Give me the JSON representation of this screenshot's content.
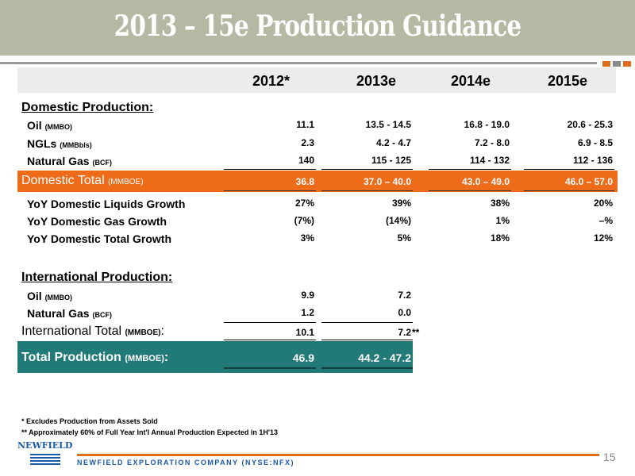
{
  "title": "2013 – 15e Production Guidance",
  "headers": [
    "2012*",
    "2013e",
    "2014e",
    "2015e"
  ],
  "domestic": {
    "section_label": "Domestic Production:",
    "rows": [
      {
        "label": "Oil",
        "unit": "(MMBO)",
        "values": [
          "11.1",
          "13.5 - 14.5",
          "16.8 - 19.0",
          "20.6 - 25.3"
        ]
      },
      {
        "label": "NGLs",
        "unit": "(MMBbls)",
        "values": [
          "2.3",
          "4.2 - 4.7",
          "7.2 - 8.0",
          "6.9 - 8.5"
        ]
      },
      {
        "label": "Natural Gas",
        "unit": "(BCF)",
        "values": [
          "140",
          "115 - 125",
          "114 - 132",
          "112 - 136"
        ]
      }
    ],
    "total": {
      "label": "Domestic Total",
      "unit": "(MMBOE)",
      "values": [
        "36.8",
        "37.0 – 40.0",
        "43.0 – 49.0",
        "46.0 – 57.0"
      ]
    },
    "growth": [
      {
        "label": "YoY Domestic Liquids Growth",
        "values": [
          "27%",
          "39%",
          "38%",
          "20%"
        ]
      },
      {
        "label": "YoY Domestic Gas Growth",
        "values": [
          "(7%)",
          "(14%)",
          "1%",
          "–%"
        ]
      },
      {
        "label": "YoY Domestic Total Growth",
        "values": [
          "3%",
          "5%",
          "18%",
          "12%"
        ]
      }
    ]
  },
  "international": {
    "section_label": "International Production:",
    "rows": [
      {
        "label": "Oil",
        "unit": "(MMBO)",
        "values": [
          "9.9",
          "7.2"
        ]
      },
      {
        "label": "Natural Gas",
        "unit": "(BCF)",
        "values": [
          "1.2",
          "0.0"
        ]
      }
    ],
    "total": {
      "label": "International Total",
      "unit": "(MMBOE)",
      "colon": ":",
      "values": [
        "10.1",
        "7.2"
      ],
      "note_mark": "**"
    }
  },
  "grand_total": {
    "label": "Total Production",
    "unit": "(MMBOE)",
    "colon": ":",
    "values": [
      "46.9",
      "44.2 - 47.2"
    ]
  },
  "footnotes": [
    "* Excludes Production from Assets Sold",
    "** Approximately 60% of Full Year Int'l Annual Production Expected in 1H'13"
  ],
  "logo_text": "NEWFIELD",
  "footer_text": "NEWFIELD EXPLORATION COMPANY (NYSE:NFX)",
  "page_number": "15",
  "colors": {
    "title_bg": "#b5b8a2",
    "accent_orange": "#ee6b1a",
    "teal": "#217a78",
    "brand_blue": "#1b5aa8"
  }
}
